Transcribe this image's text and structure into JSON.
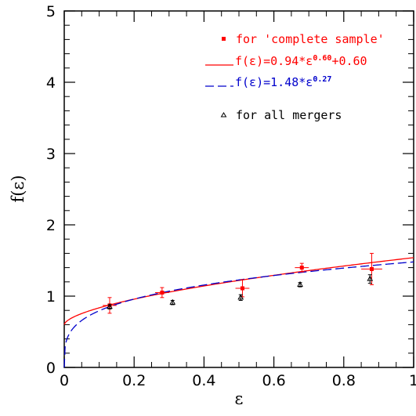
{
  "chart_data": {
    "type": "scatter",
    "xlabel": "ε",
    "ylabel": "f(ε)",
    "xlim": [
      0,
      1
    ],
    "ylim": [
      0,
      5
    ],
    "x_ticks": [
      0,
      0.2,
      0.4,
      0.6,
      0.8,
      1
    ],
    "x_tick_labels": [
      "0",
      "0.2",
      "0.4",
      "0.6",
      "0.8",
      "1"
    ],
    "y_ticks": [
      0,
      1,
      2,
      3,
      4,
      5
    ],
    "y_tick_labels": [
      "0",
      "1",
      "2",
      "3",
      "4",
      "5"
    ],
    "legend_position": "top-right",
    "series": [
      {
        "name": "for 'complete sample'",
        "kind": "points",
        "marker": "square",
        "color": "#ff0000",
        "points": [
          {
            "x": 0.13,
            "y": 0.87,
            "xerr": 0.02,
            "yerr": 0.11
          },
          {
            "x": 0.28,
            "y": 1.05,
            "xerr": 0.02,
            "yerr": 0.07
          },
          {
            "x": 0.51,
            "y": 1.11,
            "xerr": 0.02,
            "yerr": 0.12
          },
          {
            "x": 0.68,
            "y": 1.4,
            "xerr": 0.02,
            "yerr": 0.06
          },
          {
            "x": 0.88,
            "y": 1.38,
            "xerr": 0.03,
            "yerr": 0.22
          }
        ]
      },
      {
        "name": "f(ε)=0.94*ε^0.60+0.60",
        "name_prefix": "f(ε)=0.94*ε",
        "name_sup": "0.60",
        "name_suffix": "+0.60",
        "kind": "curve",
        "style": "solid",
        "color": "#ff0000",
        "formula": {
          "a": 0.94,
          "b": 0.6,
          "c": 0.6
        }
      },
      {
        "name": "f(ε)=1.48*ε^0.27",
        "name_prefix": "f(ε)=1.48*ε",
        "name_sup": "0.27",
        "name_suffix": "",
        "kind": "curve",
        "style": "dashed",
        "color": "#0000cc",
        "formula": {
          "a": 1.48,
          "b": 0.27,
          "c": 0
        }
      },
      {
        "name": "for all mergers",
        "kind": "points",
        "marker": "triangle",
        "color": "#000000",
        "points": [
          {
            "x": 0.13,
            "y": 0.85,
            "yerr": 0.03
          },
          {
            "x": 0.31,
            "y": 0.91,
            "yerr": 0.03
          },
          {
            "x": 0.505,
            "y": 0.98,
            "yerr": 0.04
          },
          {
            "x": 0.675,
            "y": 1.16,
            "yerr": 0.03
          },
          {
            "x": 0.875,
            "y": 1.24,
            "yerr": 0.06
          }
        ]
      }
    ]
  }
}
